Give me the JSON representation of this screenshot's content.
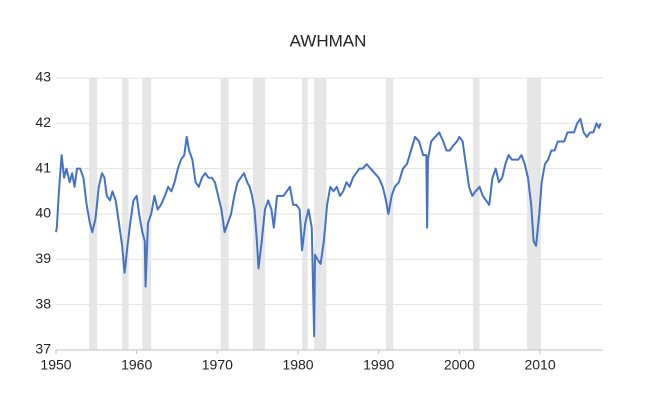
{
  "chart_data": {
    "type": "line",
    "title": "AWHMAN",
    "xlim": [
      1950,
      2017.8
    ],
    "xticks": [
      1950,
      1960,
      1970,
      1980,
      1990,
      2000,
      2010
    ],
    "ylim": [
      37,
      43
    ],
    "yticks": [
      37,
      38,
      39,
      40,
      41,
      42,
      43
    ],
    "grid": true,
    "shaded_periods": [
      [
        1954.1,
        1955.1
      ],
      [
        1958.2,
        1959.0
      ],
      [
        1960.7,
        1961.8
      ],
      [
        1970.4,
        1971.4
      ],
      [
        1974.4,
        1975.9
      ],
      [
        1980.5,
        1981.2
      ],
      [
        1982.0,
        1983.5
      ],
      [
        1990.9,
        1991.8
      ],
      [
        2001.7,
        2002.5
      ],
      [
        2008.4,
        2010.1
      ]
    ],
    "shade_color": "#e6e6e6",
    "series": [
      {
        "name": "AWHMAN",
        "color": "#4472c4",
        "x": [
          1950.0,
          1950.1,
          1950.4,
          1950.7,
          1951.0,
          1951.3,
          1951.7,
          1952.0,
          1952.3,
          1952.6,
          1953.0,
          1953.4,
          1953.8,
          1954.2,
          1954.5,
          1954.9,
          1955.3,
          1955.7,
          1956.0,
          1956.3,
          1956.7,
          1957.0,
          1957.4,
          1957.8,
          1958.2,
          1958.5,
          1958.8,
          1959.2,
          1959.6,
          1960.0,
          1960.3,
          1960.7,
          1961.0,
          1961.1,
          1961.4,
          1961.8,
          1962.2,
          1962.6,
          1963.0,
          1963.5,
          1963.9,
          1964.3,
          1964.7,
          1965.1,
          1965.5,
          1965.9,
          1966.2,
          1966.5,
          1966.9,
          1967.3,
          1967.7,
          1968.1,
          1968.5,
          1968.9,
          1969.3,
          1969.7,
          1970.1,
          1970.5,
          1970.9,
          1971.3,
          1971.7,
          1972.1,
          1972.5,
          1972.9,
          1973.3,
          1973.7,
          1974.0,
          1974.3,
          1974.6,
          1974.9,
          1975.1,
          1975.5,
          1975.9,
          1976.3,
          1976.7,
          1977.0,
          1977.4,
          1977.8,
          1978.2,
          1978.6,
          1979.0,
          1979.4,
          1979.8,
          1980.2,
          1980.5,
          1980.9,
          1981.3,
          1981.7,
          1982.0,
          1982.1,
          1982.4,
          1982.8,
          1983.2,
          1983.6,
          1984.0,
          1984.4,
          1984.8,
          1985.2,
          1985.6,
          1986.0,
          1986.4,
          1986.8,
          1987.2,
          1987.6,
          1988.0,
          1988.5,
          1989.0,
          1989.5,
          1990.0,
          1990.5,
          1990.9,
          1991.2,
          1991.6,
          1992.0,
          1992.5,
          1993.0,
          1993.5,
          1994.0,
          1994.5,
          1995.0,
          1995.5,
          1995.9,
          1996.0,
          1996.1,
          1996.5,
          1997.0,
          1997.5,
          1998.0,
          1998.4,
          1998.8,
          1999.2,
          1999.7,
          2000.0,
          2000.4,
          2000.8,
          2001.2,
          2001.6,
          2002.0,
          2002.5,
          2002.9,
          2003.3,
          2003.7,
          2004.1,
          2004.5,
          2004.9,
          2005.3,
          2005.7,
          2006.1,
          2006.5,
          2006.9,
          2007.3,
          2007.7,
          2008.1,
          2008.5,
          2008.9,
          2009.2,
          2009.5,
          2009.9,
          2010.2,
          2010.6,
          2011.0,
          2011.4,
          2011.8,
          2012.2,
          2012.6,
          2013.0,
          2013.4,
          2013.8,
          2014.2,
          2014.6,
          2015.0,
          2015.4,
          2015.8,
          2016.2,
          2016.6,
          2017.0,
          2017.3,
          2017.5
        ],
        "values": [
          39.6,
          39.7,
          40.6,
          41.3,
          40.8,
          41.0,
          40.7,
          40.9,
          40.6,
          41.0,
          41.0,
          40.8,
          40.2,
          39.8,
          39.6,
          39.9,
          40.6,
          40.9,
          40.8,
          40.4,
          40.3,
          40.5,
          40.3,
          39.8,
          39.3,
          38.7,
          39.2,
          39.8,
          40.3,
          40.4,
          40.0,
          39.6,
          39.4,
          38.4,
          39.8,
          40.0,
          40.4,
          40.1,
          40.2,
          40.4,
          40.6,
          40.5,
          40.7,
          41.0,
          41.2,
          41.3,
          41.7,
          41.4,
          41.2,
          40.7,
          40.6,
          40.8,
          40.9,
          40.8,
          40.8,
          40.7,
          40.4,
          40.1,
          39.6,
          39.8,
          40.0,
          40.4,
          40.7,
          40.8,
          40.9,
          40.7,
          40.6,
          40.4,
          40.1,
          39.4,
          38.8,
          39.4,
          40.1,
          40.3,
          40.1,
          39.7,
          40.4,
          40.4,
          40.4,
          40.5,
          40.6,
          40.2,
          40.2,
          40.1,
          39.2,
          39.8,
          40.1,
          39.7,
          37.3,
          39.1,
          39.0,
          38.9,
          39.4,
          40.2,
          40.6,
          40.5,
          40.6,
          40.4,
          40.5,
          40.7,
          40.6,
          40.8,
          40.9,
          41.0,
          41.0,
          41.1,
          41.0,
          40.9,
          40.8,
          40.6,
          40.3,
          40.0,
          40.4,
          40.6,
          40.7,
          41.0,
          41.1,
          41.4,
          41.7,
          41.6,
          41.3,
          41.3,
          39.7,
          41.2,
          41.6,
          41.7,
          41.8,
          41.6,
          41.4,
          41.4,
          41.5,
          41.6,
          41.7,
          41.6,
          41.1,
          40.6,
          40.4,
          40.5,
          40.6,
          40.4,
          40.3,
          40.2,
          40.8,
          41.0,
          40.7,
          40.8,
          41.1,
          41.3,
          41.2,
          41.2,
          41.2,
          41.3,
          41.1,
          40.8,
          40.2,
          39.4,
          39.3,
          40.0,
          40.7,
          41.1,
          41.2,
          41.4,
          41.4,
          41.6,
          41.6,
          41.6,
          41.8,
          41.8,
          41.8,
          42.0,
          42.1,
          41.8,
          41.7,
          41.8,
          41.8,
          42.0,
          41.9,
          42.0
        ]
      }
    ]
  }
}
